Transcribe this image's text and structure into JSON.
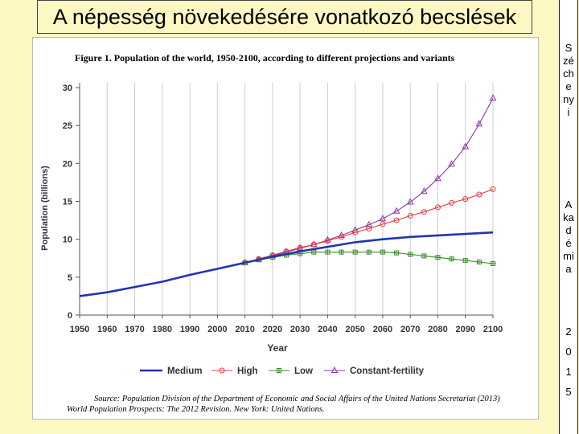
{
  "slide": {
    "title": "A népesség növekedésére vonatkozó becslések",
    "side_author": "Széchenyi",
    "side_org": "Akadémia",
    "side_year": "2015"
  },
  "chart_data": {
    "type": "line",
    "title": "Figure 1.  Population of the world, 1950-2100, according to different projections and variants",
    "xlabel": "Year",
    "ylabel": "Population (billions)",
    "xlim": [
      1950,
      2100
    ],
    "ylim": [
      0,
      30
    ],
    "xticks": [
      1950,
      1960,
      1970,
      1980,
      1990,
      2000,
      2010,
      2020,
      2030,
      2040,
      2050,
      2060,
      2070,
      2080,
      2090,
      2100
    ],
    "yticks": [
      0,
      5,
      10,
      15,
      20,
      25,
      30
    ],
    "grid": "vertical",
    "legend_position": "bottom",
    "colors": {
      "medium": "#1f35b4",
      "high": "#e8393b",
      "low": "#3c8c2e",
      "constant": "#8a3aa6"
    },
    "series": [
      {
        "name": "Medium",
        "marker": "none",
        "x": [
          1950,
          1960,
          1970,
          1980,
          1990,
          2000,
          2010,
          2020,
          2030,
          2040,
          2050,
          2060,
          2070,
          2080,
          2090,
          2100
        ],
        "values": [
          2.5,
          3.0,
          3.7,
          4.4,
          5.3,
          6.1,
          6.9,
          7.7,
          8.4,
          9.0,
          9.6,
          10.0,
          10.3,
          10.5,
          10.7,
          10.9
        ]
      },
      {
        "name": "High",
        "marker": "circle",
        "x": [
          2010,
          2015,
          2020,
          2025,
          2030,
          2035,
          2040,
          2045,
          2050,
          2055,
          2060,
          2065,
          2070,
          2075,
          2080,
          2085,
          2090,
          2095,
          2100
        ],
        "values": [
          6.9,
          7.4,
          7.9,
          8.4,
          8.9,
          9.3,
          9.8,
          10.3,
          10.9,
          11.4,
          12.0,
          12.5,
          13.1,
          13.6,
          14.2,
          14.8,
          15.3,
          15.9,
          16.6
        ]
      },
      {
        "name": "Low",
        "marker": "square",
        "x": [
          2010,
          2015,
          2020,
          2025,
          2030,
          2035,
          2040,
          2045,
          2050,
          2055,
          2060,
          2065,
          2070,
          2075,
          2080,
          2085,
          2090,
          2095,
          2100
        ],
        "values": [
          6.9,
          7.3,
          7.6,
          7.9,
          8.1,
          8.3,
          8.3,
          8.3,
          8.3,
          8.3,
          8.3,
          8.2,
          8.0,
          7.8,
          7.6,
          7.4,
          7.2,
          7.0,
          6.8
        ]
      },
      {
        "name": "Constant-fertility",
        "marker": "triangle",
        "x": [
          2010,
          2015,
          2020,
          2025,
          2030,
          2035,
          2040,
          2045,
          2050,
          2055,
          2060,
          2065,
          2070,
          2075,
          2080,
          2085,
          2090,
          2095,
          2100
        ],
        "values": [
          6.9,
          7.3,
          7.8,
          8.3,
          8.8,
          9.3,
          9.9,
          10.5,
          11.2,
          11.9,
          12.7,
          13.7,
          14.9,
          16.3,
          18.0,
          19.9,
          22.2,
          25.2,
          28.6
        ]
      }
    ],
    "source_line1": "Source: Population Division of the Department of Economic and Social Affairs of the United Nations Secretariat (2013)",
    "source_line2": "World Population Prospects: The 2012 Revision. New York: United Nations."
  }
}
